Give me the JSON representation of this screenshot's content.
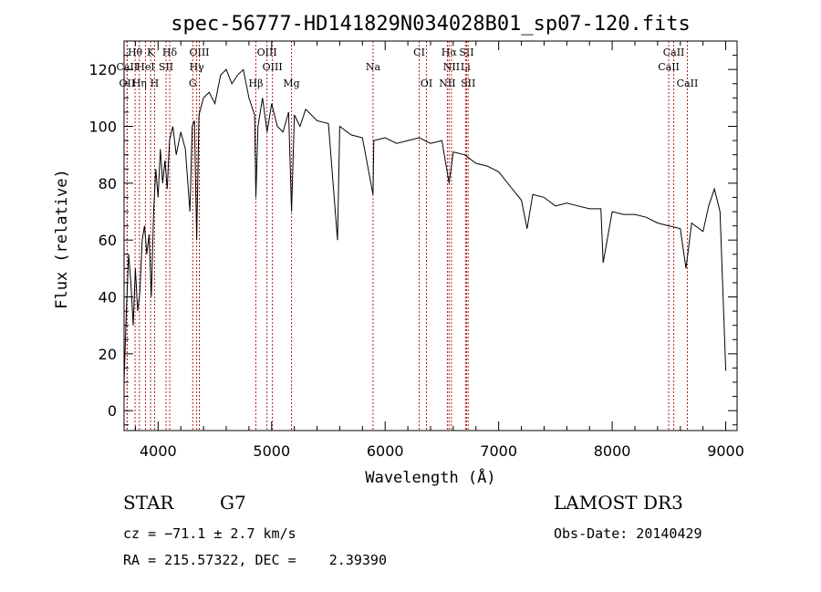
{
  "chart_data": {
    "type": "line",
    "title": "spec-56777-HD141829N034028B01_sp07-120.fits",
    "xlabel": "Wavelength (Å)",
    "ylabel": "Flux (relative)",
    "xlim": [
      3700,
      9100
    ],
    "ylim": [
      -7,
      130
    ],
    "x_ticks": [
      4000,
      5000,
      6000,
      7000,
      8000,
      9000
    ],
    "y_ticks": [
      0,
      20,
      40,
      60,
      80,
      100,
      120
    ],
    "grid": false,
    "line_color": "#000000",
    "marker_color": "#b22222",
    "series": [
      {
        "x": [
          3700,
          3720,
          3740,
          3760,
          3780,
          3800,
          3820,
          3840,
          3860,
          3880,
          3900,
          3920,
          3940,
          3960,
          3980,
          4000,
          4020,
          4040,
          4060,
          4080,
          4100,
          4130,
          4160,
          4200,
          4240,
          4280,
          4300,
          4320,
          4340,
          4360,
          4400,
          4450,
          4500,
          4550,
          4600,
          4650,
          4700,
          4750,
          4800,
          4850,
          4861,
          4880,
          4920,
          4960,
          5000,
          5050,
          5100,
          5150,
          5175,
          5200,
          5250,
          5300,
          5400,
          5500,
          5580,
          5600,
          5700,
          5800,
          5893,
          5900,
          6000,
          6100,
          6200,
          6300,
          6400,
          6500,
          6563,
          6600,
          6700,
          6800,
          6900,
          7000,
          7100,
          7200,
          7250,
          7300,
          7400,
          7500,
          7600,
          7700,
          7800,
          7900,
          7920,
          8000,
          8100,
          8200,
          8300,
          8400,
          8500,
          8600,
          8650,
          8700,
          8800,
          8850,
          8900,
          8950,
          9000
        ],
        "y": [
          10,
          35,
          55,
          45,
          30,
          50,
          35,
          42,
          60,
          65,
          55,
          62,
          40,
          70,
          85,
          75,
          92,
          80,
          88,
          78,
          95,
          100,
          90,
          98,
          92,
          70,
          100,
          102,
          60,
          104,
          110,
          112,
          108,
          118,
          120,
          115,
          118,
          120,
          110,
          104,
          75,
          100,
          110,
          98,
          108,
          100,
          98,
          105,
          70,
          104,
          100,
          106,
          102,
          101,
          60,
          100,
          97,
          96,
          76,
          95,
          96,
          94,
          95,
          96,
          94,
          95,
          80,
          91,
          90,
          87,
          86,
          84,
          79,
          74,
          64,
          76,
          75,
          72,
          73,
          72,
          71,
          71,
          52,
          70,
          69,
          69,
          68,
          66,
          65,
          64,
          50,
          66,
          63,
          72,
          78,
          70,
          14
        ]
      }
    ],
    "line_markers": [
      {
        "label": "Hθ",
        "x": 3797,
        "row": 0
      },
      {
        "label": "K",
        "x": 3934,
        "row": 0
      },
      {
        "label": "Hδ",
        "x": 4102,
        "row": 0
      },
      {
        "label": "OIII",
        "x": 4363,
        "row": 0
      },
      {
        "label": "OIII",
        "x": 4959,
        "row": 0
      },
      {
        "label": "CI",
        "x": 6300,
        "row": 0
      },
      {
        "label": "Hα",
        "x": 6563,
        "row": 0
      },
      {
        "label": "SII",
        "x": 6717,
        "row": 0
      },
      {
        "label": "CaII",
        "x": 8542,
        "row": 0
      },
      {
        "label": "CaII",
        "x": 3727,
        "row": 1
      },
      {
        "label": "HeI",
        "x": 3889,
        "row": 1
      },
      {
        "label": "SII",
        "x": 4070,
        "row": 1
      },
      {
        "label": "Hγ",
        "x": 4340,
        "row": 1
      },
      {
        "label": "OIII",
        "x": 5007,
        "row": 1
      },
      {
        "label": "Na",
        "x": 5893,
        "row": 1
      },
      {
        "label": "NII",
        "x": 6584,
        "row": 1
      },
      {
        "label": "Li",
        "x": 6708,
        "row": 1
      },
      {
        "label": "CaII",
        "x": 8498,
        "row": 1
      },
      {
        "label": "OII",
        "x": 3727,
        "row": 2
      },
      {
        "label": "Hη",
        "x": 3835,
        "row": 2
      },
      {
        "label": "H",
        "x": 3969,
        "row": 2
      },
      {
        "label": "G",
        "x": 4305,
        "row": 2
      },
      {
        "label": "Hβ",
        "x": 4861,
        "row": 2
      },
      {
        "label": "Mg",
        "x": 5175,
        "row": 2
      },
      {
        "label": "OI",
        "x": 6364,
        "row": 2
      },
      {
        "label": "NII",
        "x": 6548,
        "row": 2
      },
      {
        "label": "SII",
        "x": 6731,
        "row": 2
      },
      {
        "label": "CaII",
        "x": 8662,
        "row": 2
      }
    ]
  },
  "info": {
    "object_type": "STAR",
    "subclass": "G7",
    "cz": "cz = −71.1 ± 2.7 km/s",
    "coords": "RA = 215.57322, DEC =    2.39390",
    "survey": "LAMOST DR3",
    "obs_date": "Obs-Date: 20140429"
  }
}
